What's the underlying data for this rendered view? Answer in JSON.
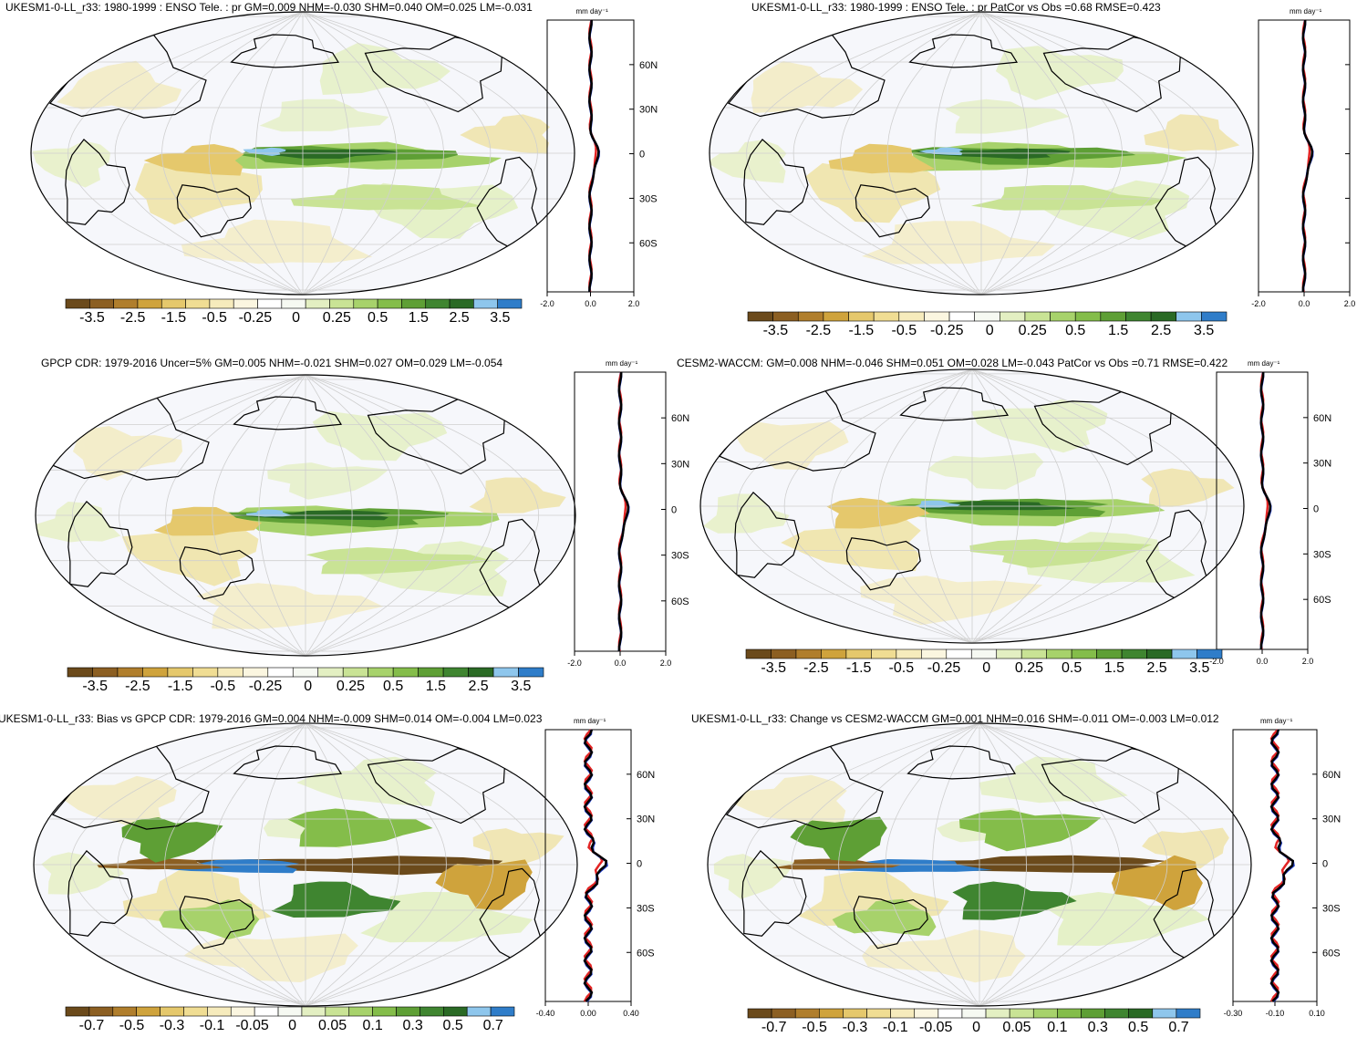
{
  "palette_main": [
    "#6b4a1b",
    "#8c5f22",
    "#b07e2c",
    "#cfa33c",
    "#e5c86c",
    "#f0dd93",
    "#f6ebbc",
    "#fbf6e0",
    "#ffffff",
    "#f6f9f2",
    "#e3efc2",
    "#c9e395",
    "#a7d26b",
    "#84bd4a",
    "#5e9f35",
    "#3f8530",
    "#2a6a25",
    "#8ec6ec",
    "#2f7dc9"
  ],
  "legend_a": [
    "-3.5",
    "-2.5",
    "-1.5",
    "-0.5",
    "-0.25",
    "0",
    "0.25",
    "0.5",
    "1.5",
    "2.5",
    "3.5"
  ],
  "legend_b": [
    "-0.7",
    "-0.5",
    "-0.3",
    "-0.1",
    "-0.05",
    "0",
    "0.05",
    "0.1",
    "0.3",
    "0.5",
    "0.7"
  ],
  "unit_label": "mm day⁻¹",
  "panels": [
    {
      "title": "UKESM1-0-LL_r33: 1980-1999 : ENSO Tele. : pr GM=0.009 NHM=-0.030 SHM=0.040 OM=0.025 LM=-0.031",
      "lat_ticks": [
        "60N",
        "30N",
        "0",
        "30S",
        "60S"
      ],
      "x_ticks": [
        "-2.0",
        "0.0",
        "2.0"
      ],
      "legend": "a"
    },
    {
      "title": "UKESM1-0-LL_r33: 1980-1999 : ENSO Tele. : pr PatCor vs Obs =0.68 RMSE=0.423",
      "lat_ticks": [],
      "x_ticks": [
        "-2.0",
        "0.0",
        "2.0"
      ],
      "legend": "a"
    },
    {
      "title": "GPCP CDR: 1979-2016 Uncer=5% GM=0.005 NHM=-0.021 SHM=0.027 OM=0.029 LM=-0.054",
      "lat_ticks": [
        "60N",
        "30N",
        "0",
        "30S",
        "60S"
      ],
      "x_ticks": [
        "-2.0",
        "0.0",
        "2.0"
      ],
      "legend": "a"
    },
    {
      "title": "CESM2-WACCM: GM=0.008 NHM=-0.046 SHM=0.051 OM=0.028 LM=-0.043 PatCor vs Obs =0.71 RMSE=0.422",
      "lat_ticks": [
        "60N",
        "30N",
        "0",
        "30S",
        "60S"
      ],
      "x_ticks": [
        "-2.0",
        "0.0",
        "2.0"
      ],
      "legend": "a"
    },
    {
      "title": "UKESM1-0-LL_r33: Bias vs GPCP CDR: 1979-2016 GM=0.004 NHM=-0.009 SHM=0.014 OM=-0.004 LM=0.023",
      "lat_ticks": [
        "60N",
        "30N",
        "0",
        "30S",
        "60S"
      ],
      "x_ticks": [
        "-0.40",
        "0.00",
        "0.40"
      ],
      "legend": "b"
    },
    {
      "title": "UKESM1-0-LL_r33: Change vs CESM2-WACCM GM=0.001 NHM=0.016 SHM=-0.011 OM=-0.003 LM=0.012",
      "lat_ticks": [
        "60N",
        "30N",
        "0",
        "30S",
        "60S"
      ],
      "x_ticks": [
        "-0.30",
        "-0.10",
        "0.10"
      ],
      "legend": "b"
    }
  ]
}
